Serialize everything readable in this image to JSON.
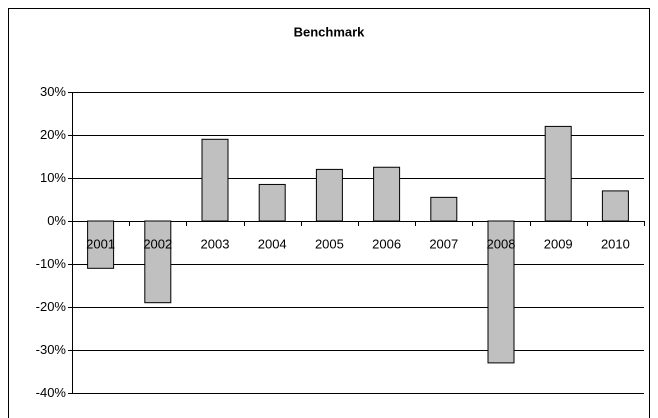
{
  "chart_data": {
    "type": "bar",
    "title": "Benchmark",
    "categories": [
      "2001",
      "2002",
      "2003",
      "2004",
      "2005",
      "2006",
      "2007",
      "2008",
      "2009",
      "2010"
    ],
    "values": [
      -11,
      -19,
      19,
      8.5,
      12,
      12.5,
      5.5,
      -33,
      22,
      7
    ],
    "color": "#c0c0c0",
    "ylim": [
      -40,
      30
    ],
    "yticks": [
      {
        "value": -40,
        "label": "-40%"
      },
      {
        "value": -30,
        "label": "-30%"
      },
      {
        "value": -20,
        "label": "-20%"
      },
      {
        "value": -10,
        "label": "-10%"
      },
      {
        "value": 0,
        "label": "0%"
      },
      {
        "value": 10,
        "label": "10%"
      },
      {
        "value": 20,
        "label": "20%"
      },
      {
        "value": 30,
        "label": "30%"
      }
    ],
    "grid": true
  }
}
